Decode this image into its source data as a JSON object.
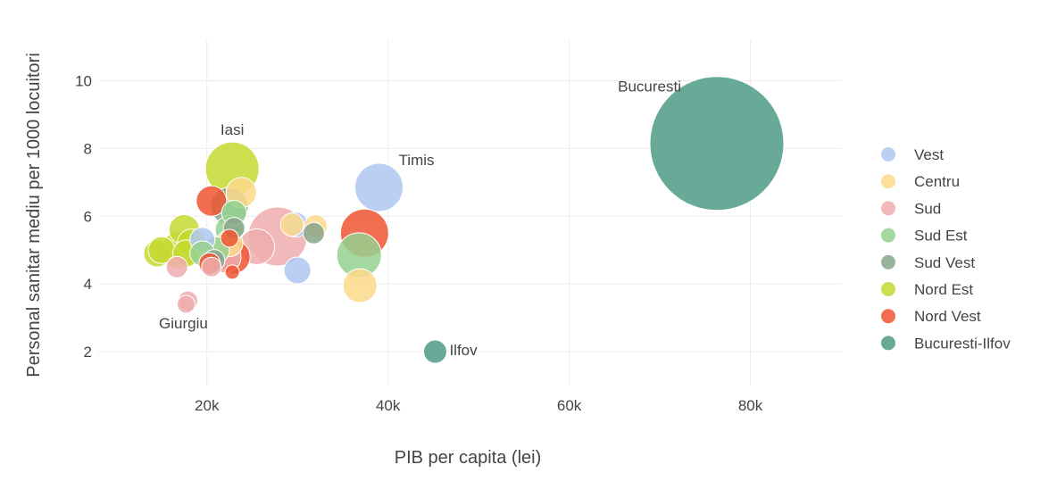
{
  "chart_data": {
    "type": "scatter",
    "title": "",
    "xlabel": "PIB per capita (lei)",
    "ylabel": "Personal sanitar mediu per 1000 locuitori",
    "xlim": [
      8000,
      90000
    ],
    "ylim": [
      1,
      11.2
    ],
    "x_ticks": [
      20000,
      40000,
      60000,
      80000
    ],
    "x_tick_labels": [
      "20k",
      "40k",
      "60k",
      "80k"
    ],
    "y_ticks": [
      2,
      4,
      6,
      8,
      10
    ],
    "y_tick_labels": [
      "2",
      "4",
      "6",
      "8",
      "10"
    ],
    "grid": true,
    "legend_position": "right",
    "series": [
      {
        "name": "Vest",
        "color": "#aec7f0",
        "points": [
          {
            "x": 39000,
            "y": 6.85,
            "size": 27
          },
          {
            "x": 30000,
            "y": 4.4,
            "size": 15
          },
          {
            "x": 29800,
            "y": 5.75,
            "size": 14
          },
          {
            "x": 19500,
            "y": 5.3,
            "size": 14
          }
        ]
      },
      {
        "name": "Centru",
        "color": "#fcd98a",
        "points": [
          {
            "x": 36900,
            "y": 3.95,
            "size": 19
          },
          {
            "x": 32000,
            "y": 5.7,
            "size": 13
          },
          {
            "x": 23800,
            "y": 6.7,
            "size": 17
          },
          {
            "x": 29400,
            "y": 5.75,
            "size": 13
          },
          {
            "x": 22500,
            "y": 5.2,
            "size": 15
          }
        ]
      },
      {
        "name": "Sud",
        "color": "#eeadad",
        "points": [
          {
            "x": 27800,
            "y": 5.4,
            "size": 33
          },
          {
            "x": 25500,
            "y": 5.1,
            "size": 20
          },
          {
            "x": 22000,
            "y": 4.8,
            "size": 18
          },
          {
            "x": 16700,
            "y": 4.5,
            "size": 12
          },
          {
            "x": 17900,
            "y": 3.5,
            "size": 11
          },
          {
            "x": 17700,
            "y": 3.4,
            "size": 10
          },
          {
            "x": 20500,
            "y": 4.5,
            "size": 11
          }
        ]
      },
      {
        "name": "Sud Est",
        "color": "#95d18f",
        "points": [
          {
            "x": 36800,
            "y": 4.85,
            "size": 25
          },
          {
            "x": 22500,
            "y": 5.6,
            "size": 16
          },
          {
            "x": 21000,
            "y": 5.0,
            "size": 15
          },
          {
            "x": 19500,
            "y": 4.9,
            "size": 14
          },
          {
            "x": 23000,
            "y": 6.1,
            "size": 14
          }
        ]
      },
      {
        "name": "Sud Vest",
        "color": "#88a68c",
        "points": [
          {
            "x": 22500,
            "y": 6.3,
            "size": 21
          },
          {
            "x": 31800,
            "y": 5.5,
            "size": 12
          },
          {
            "x": 23000,
            "y": 5.65,
            "size": 12
          },
          {
            "x": 20800,
            "y": 4.7,
            "size": 12
          }
        ]
      },
      {
        "name": "Nord Est",
        "color": "#c4d830",
        "points": [
          {
            "x": 22800,
            "y": 7.4,
            "size": 30
          },
          {
            "x": 17500,
            "y": 5.6,
            "size": 17
          },
          {
            "x": 17000,
            "y": 5.0,
            "size": 21
          },
          {
            "x": 18300,
            "y": 5.2,
            "size": 16
          },
          {
            "x": 14500,
            "y": 4.9,
            "size": 15
          },
          {
            "x": 15000,
            "y": 5.0,
            "size": 15
          },
          {
            "x": 17700,
            "y": 4.9,
            "size": 15
          }
        ]
      },
      {
        "name": "Nord Vest",
        "color": "#ef5533",
        "points": [
          {
            "x": 37400,
            "y": 5.5,
            "size": 27
          },
          {
            "x": 20500,
            "y": 6.45,
            "size": 17
          },
          {
            "x": 22900,
            "y": 4.8,
            "size": 19
          },
          {
            "x": 20300,
            "y": 4.6,
            "size": 12
          },
          {
            "x": 22500,
            "y": 5.35,
            "size": 10
          },
          {
            "x": 22800,
            "y": 4.35,
            "size": 8
          }
        ]
      },
      {
        "name": "Bucuresti-Ilfov",
        "color": "#4d9a85",
        "points": [
          {
            "x": 76300,
            "y": 8.15,
            "size": 75
          },
          {
            "x": 45200,
            "y": 2.0,
            "size": 13
          }
        ]
      }
    ],
    "annotations": [
      {
        "text": "Bucuresti",
        "x": 76300,
        "y": 8.15,
        "anchor": "upper-left"
      },
      {
        "text": "Iasi",
        "x": 22800,
        "y": 7.4,
        "anchor": "above"
      },
      {
        "text": "Timis",
        "x": 39000,
        "y": 6.85,
        "anchor": "upper-right"
      },
      {
        "text": "Giurgiu",
        "x": 17700,
        "y": 3.4,
        "anchor": "below"
      },
      {
        "text": "Ilfov",
        "x": 45200,
        "y": 2.0,
        "anchor": "right"
      }
    ]
  }
}
